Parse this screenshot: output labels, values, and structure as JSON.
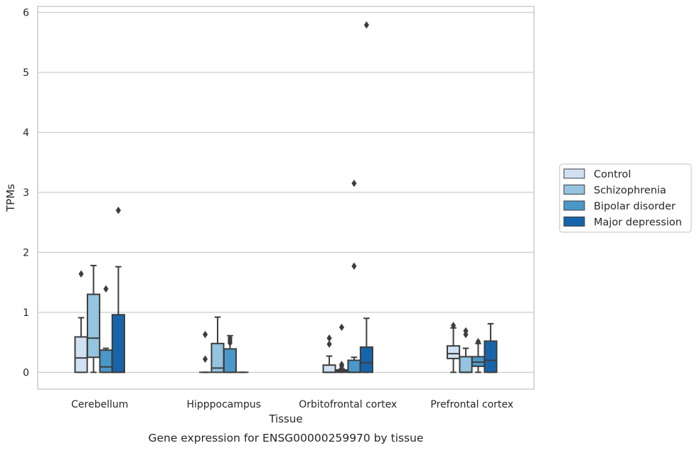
{
  "chart_data": {
    "type": "box",
    "xlabel": "Tissue",
    "ylabel": "TPMs",
    "caption": "Gene expression for ENSG00000259970 by tissue",
    "ylim": [
      -0.28,
      6.1
    ],
    "yticks": [
      0,
      1,
      2,
      3,
      4,
      5,
      6
    ],
    "grid": "horizontal",
    "legend_position": "right",
    "categories": [
      "Cerebellum",
      "Hipppocampus",
      "Orbitofrontal cortex",
      "Prefrontal cortex"
    ],
    "series": [
      {
        "name": "Control",
        "color": "#d0e1f2",
        "boxes": [
          {
            "whislo": 0.0,
            "q1": 0.0,
            "med": 0.24,
            "q3": 0.59,
            "whishi": 0.91,
            "fliers": [
              1.64
            ]
          },
          {
            "whislo": 0.0,
            "q1": 0.0,
            "med": 0.0,
            "q3": 0.0,
            "whishi": 0.0,
            "fliers": [
              0.22,
              0.63
            ]
          },
          {
            "whislo": 0.0,
            "q1": 0.0,
            "med": 0.0,
            "q3": 0.12,
            "whishi": 0.27,
            "fliers": [
              0.47,
              0.57
            ]
          },
          {
            "whislo": 0.0,
            "q1": 0.23,
            "med": 0.31,
            "q3": 0.44,
            "whishi": 0.74,
            "fliers": [
              0.78
            ]
          }
        ]
      },
      {
        "name": "Schizophrenia",
        "color": "#94c4df",
        "boxes": [
          {
            "whislo": 0.0,
            "q1": 0.25,
            "med": 0.57,
            "q3": 1.3,
            "whishi": 1.78,
            "fliers": []
          },
          {
            "whislo": 0.0,
            "q1": 0.0,
            "med": 0.07,
            "q3": 0.48,
            "whishi": 0.92,
            "fliers": []
          },
          {
            "whislo": 0.0,
            "q1": 0.0,
            "med": 0.02,
            "q3": 0.04,
            "whishi": 0.06,
            "fliers": [
              0.1,
              0.13,
              0.75
            ]
          },
          {
            "whislo": 0.0,
            "q1": 0.0,
            "med": 0.0,
            "q3": 0.26,
            "whishi": 0.4,
            "fliers": [
              0.63,
              0.69
            ]
          }
        ]
      },
      {
        "name": "Bipolar disorder",
        "color": "#4a98c9",
        "boxes": [
          {
            "whislo": 0.0,
            "q1": 0.0,
            "med": 0.09,
            "q3": 0.37,
            "whishi": 0.4,
            "fliers": [
              1.39
            ]
          },
          {
            "whislo": 0.0,
            "q1": 0.0,
            "med": 0.0,
            "q3": 0.39,
            "whishi": 0.61,
            "fliers": [
              0.49,
              0.53,
              0.57
            ]
          },
          {
            "whislo": 0.0,
            "q1": 0.0,
            "med": 0.0,
            "q3": 0.2,
            "whishi": 0.25,
            "fliers": [
              1.77,
              3.15
            ]
          },
          {
            "whislo": 0.0,
            "q1": 0.1,
            "med": 0.17,
            "q3": 0.26,
            "whishi": 0.48,
            "fliers": [
              0.51
            ]
          }
        ]
      },
      {
        "name": "Major depression",
        "color": "#1764ab",
        "boxes": [
          {
            "whislo": 0.0,
            "q1": 0.0,
            "med": 0.0,
            "q3": 0.96,
            "whishi": 1.76,
            "fliers": [
              2.7
            ]
          },
          {
            "whislo": 0.0,
            "q1": 0.0,
            "med": 0.0,
            "q3": 0.0,
            "whishi": 0.0,
            "fliers": []
          },
          {
            "whislo": 0.0,
            "q1": 0.0,
            "med": 0.16,
            "q3": 0.42,
            "whishi": 0.9,
            "fliers": [
              5.79
            ]
          },
          {
            "whislo": 0.0,
            "q1": 0.0,
            "med": 0.2,
            "q3": 0.52,
            "whishi": 0.81,
            "fliers": []
          }
        ]
      }
    ]
  }
}
